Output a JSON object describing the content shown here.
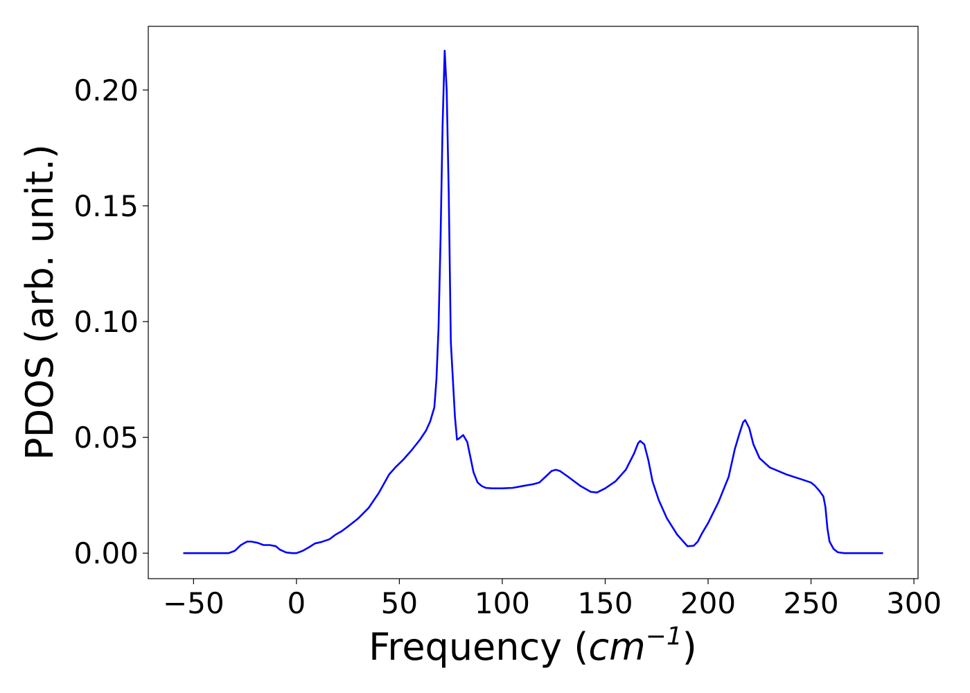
{
  "chart_data": {
    "type": "line",
    "title": "",
    "xlabel": "Frequency",
    "xlabel_unit_base": "cm",
    "xlabel_unit_exp": "−1",
    "ylabel": "PDOS (arb. unit.)",
    "xlim": [
      -72,
      302
    ],
    "ylim": [
      -0.011,
      0.2275
    ],
    "grid": false,
    "x_ticks": [
      -50,
      0,
      50,
      100,
      150,
      200,
      250,
      300
    ],
    "x_tick_labels": [
      "−50",
      "0",
      "50",
      "100",
      "150",
      "200",
      "250",
      "300"
    ],
    "y_ticks": [
      0.0,
      0.05,
      0.1,
      0.15,
      0.2
    ],
    "y_tick_labels": [
      "0.00",
      "0.05",
      "0.10",
      "0.15",
      "0.20"
    ],
    "series": [
      {
        "color": "#0000ff",
        "x": [
          -55,
          -33,
          -30,
          -27,
          -24,
          -22,
          -19,
          -16,
          -13,
          -10,
          -8,
          -5,
          -2,
          0,
          3,
          6,
          9,
          12,
          16,
          19,
          22,
          25,
          30,
          35,
          40,
          45,
          48,
          52,
          56,
          60,
          63,
          65,
          67,
          68,
          69,
          70,
          71,
          72,
          73,
          74,
          75,
          77,
          78,
          79,
          81,
          83,
          86,
          88,
          90,
          92,
          95,
          100,
          105,
          110,
          115,
          118,
          121,
          124,
          126,
          128,
          132,
          138,
          143,
          146,
          150,
          155,
          160,
          164,
          166,
          167,
          169,
          171,
          173,
          176,
          180,
          185,
          190,
          193,
          195,
          197,
          200,
          205,
          210,
          213,
          215,
          217,
          218,
          220,
          222,
          225,
          230,
          238,
          245,
          250,
          252,
          254,
          256,
          257,
          258,
          259,
          261,
          263,
          266,
          270,
          285
        ],
        "y": [
          0.0,
          0.0,
          0.001,
          0.0035,
          0.005,
          0.005,
          0.0045,
          0.0035,
          0.0035,
          0.003,
          0.0015,
          0.0003,
          0.0,
          0.0,
          0.001,
          0.0025,
          0.0042,
          0.0048,
          0.006,
          0.008,
          0.0095,
          0.0115,
          0.015,
          0.0195,
          0.026,
          0.034,
          0.037,
          0.0405,
          0.0445,
          0.049,
          0.053,
          0.057,
          0.063,
          0.075,
          0.097,
          0.135,
          0.185,
          0.217,
          0.2,
          0.155,
          0.091,
          0.059,
          0.049,
          0.0495,
          0.051,
          0.048,
          0.035,
          0.0305,
          0.029,
          0.0282,
          0.028,
          0.028,
          0.0282,
          0.029,
          0.0298,
          0.0305,
          0.033,
          0.0355,
          0.036,
          0.0355,
          0.033,
          0.029,
          0.0265,
          0.0262,
          0.028,
          0.031,
          0.036,
          0.043,
          0.0475,
          0.0485,
          0.047,
          0.04,
          0.031,
          0.023,
          0.015,
          0.008,
          0.003,
          0.0032,
          0.005,
          0.0085,
          0.013,
          0.022,
          0.033,
          0.045,
          0.051,
          0.0565,
          0.0575,
          0.054,
          0.047,
          0.041,
          0.037,
          0.034,
          0.032,
          0.0305,
          0.029,
          0.027,
          0.0245,
          0.02,
          0.0105,
          0.005,
          0.0018,
          0.0004,
          0.0,
          0.0,
          0.0
        ]
      }
    ]
  }
}
